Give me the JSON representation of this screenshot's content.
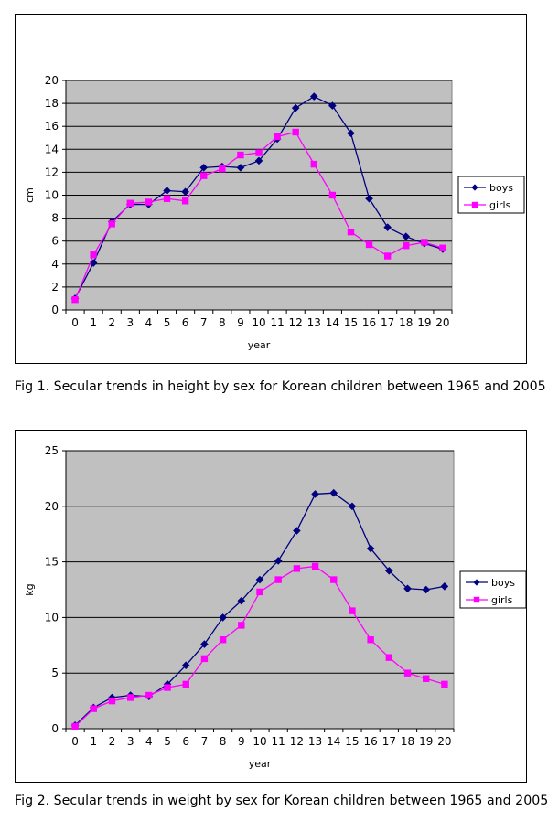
{
  "chart_data": [
    {
      "type": "line",
      "title": "",
      "xlabel": "year",
      "ylabel": "cm",
      "x": [
        0,
        1,
        2,
        3,
        4,
        5,
        6,
        7,
        8,
        9,
        10,
        11,
        12,
        13,
        14,
        15,
        16,
        17,
        18,
        19,
        20
      ],
      "ylim": [
        0,
        20
      ],
      "ystep": 2,
      "grid": true,
      "legend_position": "right",
      "series": [
        {
          "name": "boys",
          "color": "#000080",
          "marker": "diamond",
          "values": [
            1.0,
            4.1,
            7.7,
            9.2,
            9.2,
            10.4,
            10.3,
            12.4,
            12.5,
            12.4,
            13.0,
            14.9,
            17.6,
            18.6,
            17.8,
            15.4,
            9.7,
            7.2,
            6.4,
            5.8,
            5.3
          ]
        },
        {
          "name": "girls",
          "color": "#ff00ff",
          "marker": "square",
          "values": [
            0.9,
            4.8,
            7.5,
            9.3,
            9.4,
            9.7,
            9.5,
            11.7,
            12.3,
            13.5,
            13.7,
            15.1,
            15.5,
            12.7,
            10.0,
            6.8,
            5.7,
            4.7,
            5.6,
            5.9,
            5.4
          ]
        }
      ]
    },
    {
      "type": "line",
      "title": "",
      "xlabel": "year",
      "ylabel": "kg",
      "x": [
        0,
        1,
        2,
        3,
        4,
        5,
        6,
        7,
        8,
        9,
        10,
        11,
        12,
        13,
        14,
        15,
        16,
        17,
        18,
        19,
        20
      ],
      "ylim": [
        0,
        25
      ],
      "ystep": 5,
      "grid": true,
      "legend_position": "right",
      "series": [
        {
          "name": "boys",
          "color": "#000080",
          "marker": "diamond",
          "values": [
            0.3,
            1.9,
            2.8,
            3.0,
            2.9,
            4.0,
            5.7,
            7.6,
            10.0,
            11.5,
            13.4,
            15.1,
            17.8,
            21.1,
            21.2,
            20.0,
            16.2,
            14.2,
            12.6,
            12.5,
            12.8
          ]
        },
        {
          "name": "girls",
          "color": "#ff00ff",
          "marker": "square",
          "values": [
            0.2,
            1.8,
            2.5,
            2.8,
            3.0,
            3.7,
            4.0,
            6.3,
            8.0,
            9.3,
            12.3,
            13.4,
            14.4,
            14.6,
            13.4,
            10.6,
            8.0,
            6.4,
            5.0,
            4.5,
            4.0
          ]
        }
      ]
    }
  ],
  "captions": {
    "fig1": "Fig 1. Secular trends in height by sex for Korean children between 1965 and 2005",
    "fig2": "Fig 2. Secular trends in weight by sex for Korean children between 1965 and 2005"
  }
}
